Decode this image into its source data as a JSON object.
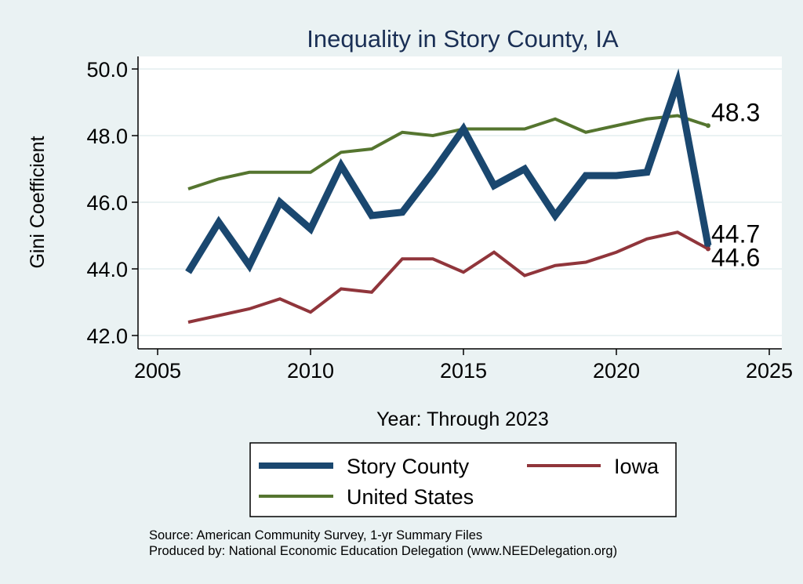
{
  "chart_data": {
    "type": "line",
    "title": "Inequality in Story County, IA",
    "xlabel": "Year: Through 2023",
    "ylabel": "Gini Coefficient",
    "xlim": [
      2005,
      2025
    ],
    "ylim": [
      42.0,
      50.0
    ],
    "x_ticks": [
      2005,
      2010,
      2015,
      2020,
      2025
    ],
    "y_ticks": [
      "42.0",
      "44.0",
      "46.0",
      "48.0",
      "50.0"
    ],
    "grid": "horizontal",
    "legend_position": "bottom",
    "x": [
      2006,
      2007,
      2008,
      2009,
      2010,
      2011,
      2012,
      2013,
      2014,
      2015,
      2016,
      2017,
      2018,
      2019,
      2020,
      2021,
      2022,
      2023
    ],
    "series": [
      {
        "name": "Story County",
        "color": "#1a476f",
        "values": [
          43.9,
          45.4,
          44.1,
          46.0,
          45.2,
          47.1,
          45.6,
          45.7,
          46.9,
          48.2,
          46.5,
          47.0,
          45.6,
          46.8,
          46.8,
          46.9,
          49.6,
          44.7
        ],
        "end_label": "44.7"
      },
      {
        "name": "Iowa",
        "color": "#90353b",
        "values": [
          42.4,
          42.6,
          42.8,
          43.1,
          42.7,
          43.4,
          43.3,
          44.3,
          44.3,
          43.9,
          44.5,
          43.8,
          44.1,
          44.2,
          44.5,
          44.9,
          45.1,
          44.6
        ],
        "end_label": "44.6"
      },
      {
        "name": "United States",
        "color": "#55752f",
        "values": [
          46.4,
          46.7,
          46.9,
          46.9,
          46.9,
          47.5,
          47.6,
          48.1,
          48.0,
          48.2,
          48.2,
          48.2,
          48.5,
          48.1,
          48.3,
          48.5,
          48.6,
          48.3
        ],
        "end_label": "48.3"
      }
    ],
    "source_line1": "Source: American Community Survey, 1-yr Summary Files",
    "source_line2": "Produced by: National Economic Education Delegation (www.NEEDelegation.org)"
  }
}
